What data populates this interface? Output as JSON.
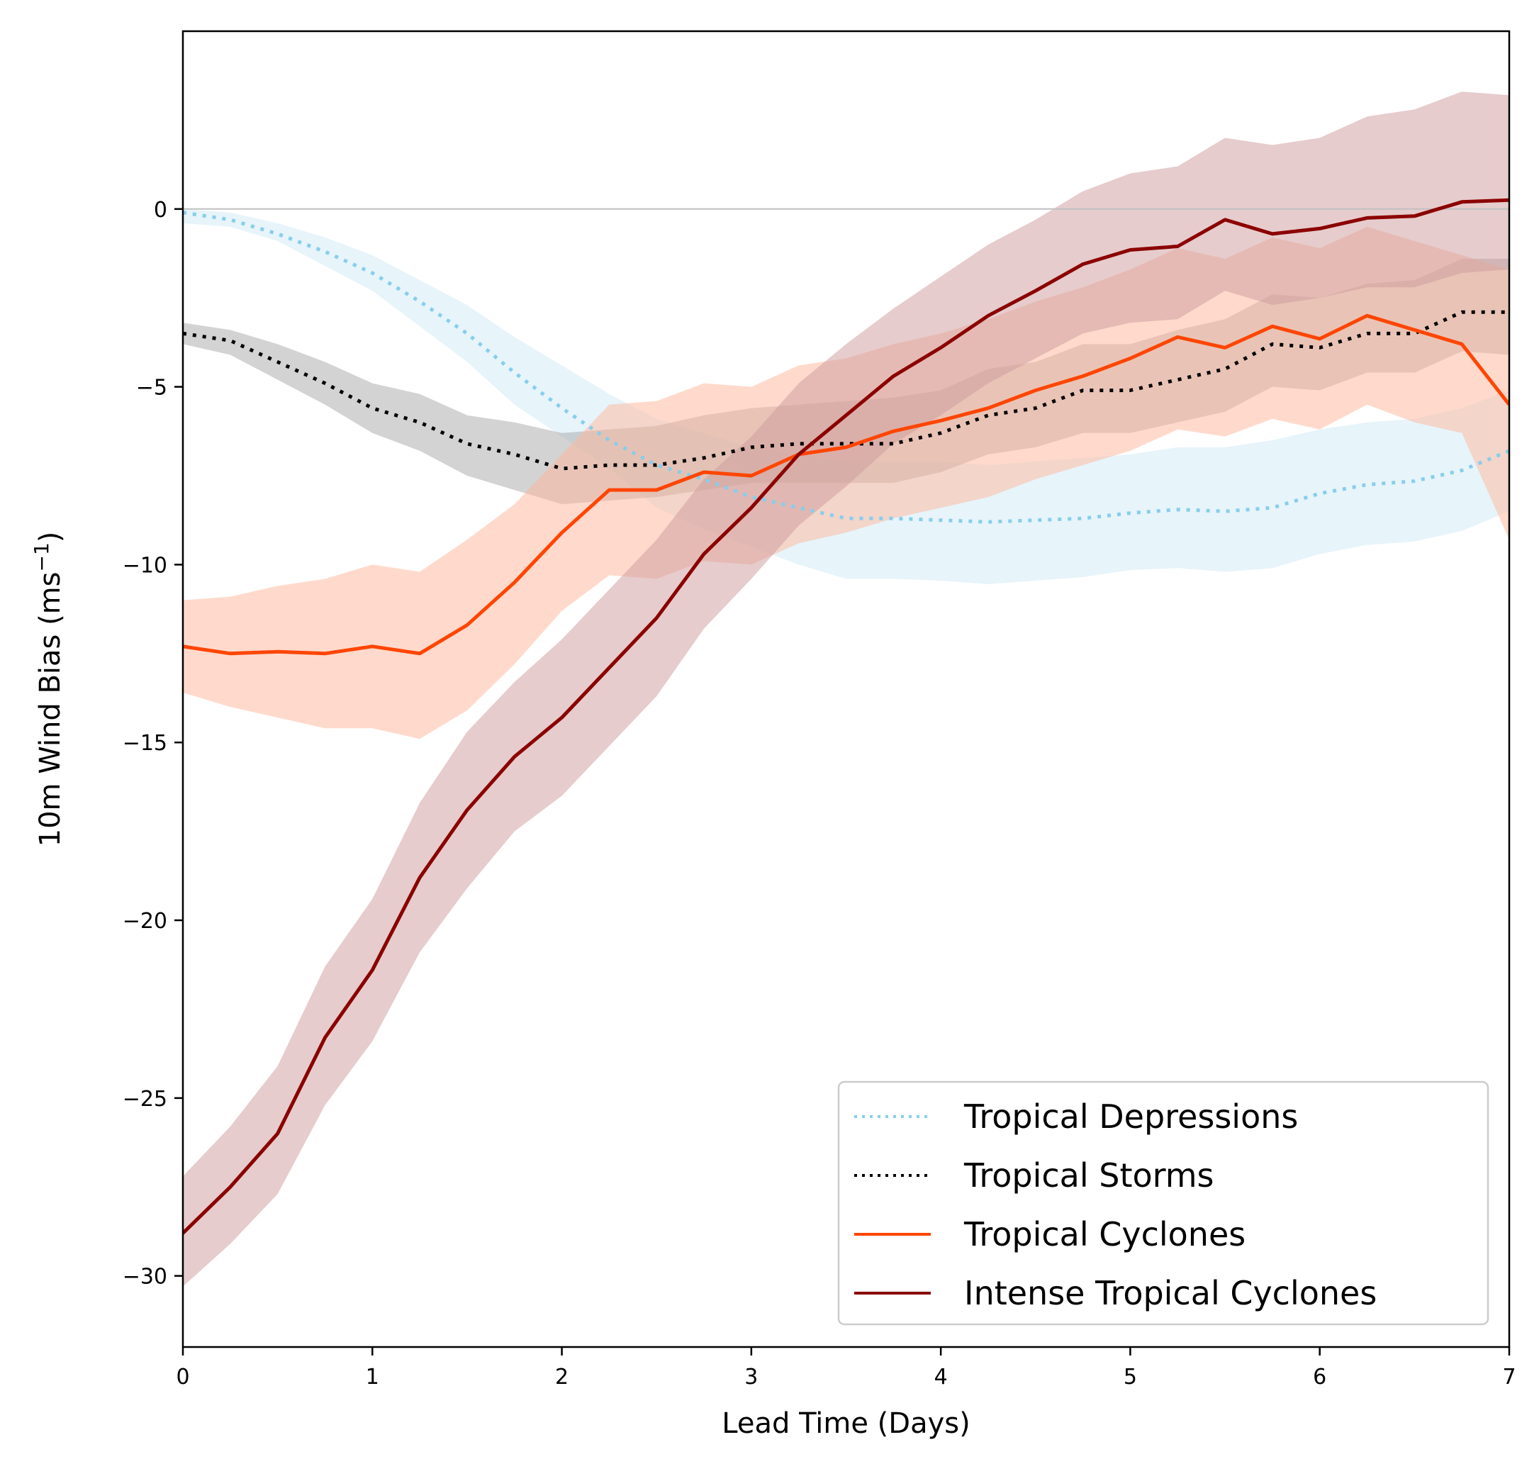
{
  "chart_data": {
    "type": "line",
    "xlabel": "Lead Time (Days)",
    "ylabel": "10m Wind Bias (ms",
    "ylabel_superscript": "−1",
    "ylabel_suffix": ")",
    "xlim": [
      0,
      7
    ],
    "ylim": [
      -32,
      5
    ],
    "xticks": [
      0,
      1,
      2,
      3,
      4,
      5,
      6,
      7
    ],
    "yticks": [
      0,
      -5,
      -10,
      -15,
      -20,
      -25,
      -30
    ],
    "ytick_labels": [
      "0",
      "−5",
      "−10",
      "−15",
      "−20",
      "−25",
      "−30"
    ],
    "zero_line": true,
    "grid": false,
    "legend_position": "lower-right",
    "x": [
      0,
      0.25,
      0.5,
      0.75,
      1,
      1.25,
      1.5,
      1.75,
      2,
      2.25,
      2.5,
      2.75,
      3,
      3.25,
      3.5,
      3.75,
      4,
      4.25,
      4.5,
      4.75,
      5,
      5.25,
      5.5,
      5.75,
      6,
      6.25,
      6.5,
      6.75,
      7
    ],
    "series": [
      {
        "name": "Tropical Depressions",
        "color": "#87CEEB",
        "band_color": "#CFE9F6",
        "style": "dotted",
        "values": [
          -0.1,
          -0.3,
          -0.7,
          -1.2,
          -1.8,
          -2.6,
          -3.5,
          -4.6,
          -5.6,
          -6.5,
          -7.2,
          -7.6,
          -8.1,
          -8.4,
          -8.7,
          -8.7,
          -8.75,
          -8.8,
          -8.75,
          -8.7,
          -8.55,
          -8.45,
          -8.5,
          -8.4,
          -8.0,
          -7.75,
          -7.65,
          -7.35,
          -6.8
        ],
        "lower": [
          -0.4,
          -0.5,
          -0.9,
          -1.6,
          -2.3,
          -3.3,
          -4.3,
          -5.5,
          -6.4,
          -7.3,
          -8.4,
          -9.0,
          -9.5,
          -10.0,
          -10.4,
          -10.4,
          -10.45,
          -10.55,
          -10.45,
          -10.35,
          -10.15,
          -10.1,
          -10.2,
          -10.1,
          -9.7,
          -9.45,
          -9.35,
          -9.05,
          -8.5
        ],
        "upper": [
          0.0,
          -0.1,
          -0.4,
          -0.8,
          -1.3,
          -2.0,
          -2.7,
          -3.6,
          -4.4,
          -5.2,
          -5.9,
          -6.3,
          -6.7,
          -6.9,
          -7.1,
          -7.1,
          -7.1,
          -7.2,
          -7.1,
          -7.0,
          -6.9,
          -6.7,
          -6.7,
          -6.5,
          -6.2,
          -6.0,
          -5.9,
          -5.6,
          -5.1
        ]
      },
      {
        "name": "Tropical Storms",
        "color": "#000000",
        "band_color": "#A8A8A8",
        "style": "dotted",
        "values": [
          -3.5,
          -3.7,
          -4.3,
          -4.9,
          -5.6,
          -6.0,
          -6.6,
          -6.9,
          -7.3,
          -7.2,
          -7.2,
          -7.0,
          -6.7,
          -6.6,
          -6.6,
          -6.6,
          -6.3,
          -5.8,
          -5.6,
          -5.1,
          -5.1,
          -4.8,
          -4.5,
          -3.8,
          -3.9,
          -3.5,
          -3.5,
          -2.9,
          -2.9
        ],
        "lower": [
          -3.8,
          -4.1,
          -4.8,
          -5.5,
          -6.3,
          -6.8,
          -7.5,
          -7.9,
          -8.3,
          -8.2,
          -8.1,
          -7.9,
          -7.7,
          -7.7,
          -7.7,
          -7.7,
          -7.4,
          -6.9,
          -6.7,
          -6.3,
          -6.3,
          -6.0,
          -5.7,
          -5.0,
          -5.1,
          -4.6,
          -4.6,
          -4.0,
          -4.1
        ],
        "upper": [
          -3.2,
          -3.4,
          -3.8,
          -4.3,
          -4.9,
          -5.2,
          -5.8,
          -6.0,
          -6.3,
          -6.2,
          -6.1,
          -5.8,
          -5.6,
          -5.5,
          -5.4,
          -5.3,
          -5.1,
          -4.5,
          -4.3,
          -3.8,
          -3.8,
          -3.4,
          -3.1,
          -2.4,
          -2.5,
          -2.1,
          -2.0,
          -1.4,
          -1.4
        ]
      },
      {
        "name": "Tropical Cyclones",
        "color": "#FF4500",
        "band_color": "#FFB59A",
        "style": "solid",
        "values": [
          -12.3,
          -12.5,
          -12.45,
          -12.5,
          -12.3,
          -12.5,
          -11.7,
          -10.5,
          -9.1,
          -7.9,
          -7.9,
          -7.4,
          -7.5,
          -6.9,
          -6.7,
          -6.25,
          -5.95,
          -5.6,
          -5.1,
          -4.7,
          -4.2,
          -3.6,
          -3.9,
          -3.3,
          -3.65,
          -3.0,
          -3.4,
          -3.8,
          -5.5
        ],
        "lower": [
          -13.6,
          -14.0,
          -14.3,
          -14.6,
          -14.6,
          -14.9,
          -14.1,
          -12.8,
          -11.3,
          -10.3,
          -10.4,
          -9.9,
          -10.0,
          -9.4,
          -9.1,
          -8.7,
          -8.4,
          -8.1,
          -7.6,
          -7.2,
          -6.8,
          -6.2,
          -6.4,
          -5.9,
          -6.2,
          -5.5,
          -6.0,
          -6.3,
          -9.3
        ],
        "upper": [
          -11.0,
          -10.9,
          -10.6,
          -10.4,
          -10.0,
          -10.2,
          -9.3,
          -8.3,
          -6.9,
          -5.5,
          -5.4,
          -4.9,
          -5.0,
          -4.4,
          -4.2,
          -3.8,
          -3.5,
          -3.1,
          -2.6,
          -2.2,
          -1.7,
          -1.1,
          -1.4,
          -0.8,
          -1.1,
          -0.5,
          -0.9,
          -1.3,
          -1.7
        ]
      },
      {
        "name": "Intense Tropical Cyclones",
        "color": "#8B0000",
        "band_color": "#CD9A9C",
        "style": "solid",
        "values": [
          -28.8,
          -27.5,
          -26.0,
          -23.3,
          -21.4,
          -18.8,
          -16.9,
          -15.4,
          -14.3,
          -12.9,
          -11.5,
          -9.7,
          -8.4,
          -6.9,
          -5.8,
          -4.7,
          -3.9,
          -3.0,
          -2.3,
          -1.55,
          -1.15,
          -1.05,
          -0.3,
          -0.7,
          -0.55,
          -0.25,
          -0.2,
          0.2,
          0.25
        ],
        "lower": [
          -30.3,
          -29.1,
          -27.7,
          -25.2,
          -23.4,
          -20.9,
          -19.1,
          -17.5,
          -16.5,
          -15.1,
          -13.7,
          -11.8,
          -10.4,
          -8.9,
          -7.8,
          -6.6,
          -5.8,
          -4.9,
          -4.2,
          -3.5,
          -3.2,
          -3.1,
          -2.3,
          -2.7,
          -2.5,
          -2.2,
          -2.2,
          -1.8,
          -1.7
        ],
        "upper": [
          -27.2,
          -25.8,
          -24.1,
          -21.3,
          -19.4,
          -16.7,
          -14.7,
          -13.3,
          -12.1,
          -10.7,
          -9.3,
          -7.6,
          -6.4,
          -4.9,
          -3.8,
          -2.8,
          -1.9,
          -1.0,
          -0.3,
          0.5,
          1.0,
          1.2,
          2.0,
          1.8,
          2.0,
          2.6,
          2.8,
          3.3,
          3.2
        ]
      }
    ]
  }
}
